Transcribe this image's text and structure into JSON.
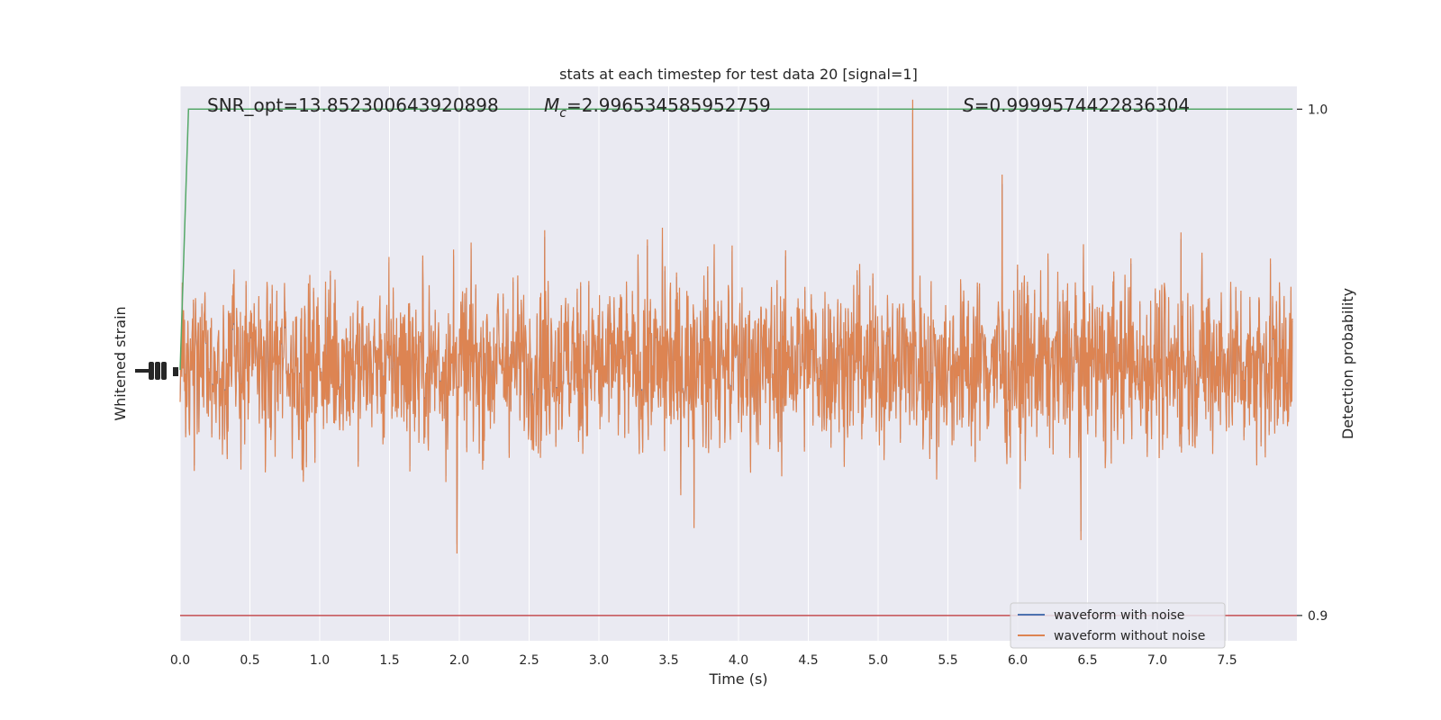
{
  "chart_data": {
    "type": "line",
    "title": "stats at each timestep for test data 20 [signal=1]",
    "xlabel": "Time (s)",
    "ylabel_left": "Whitened strain",
    "ylabel_right": "Detection probability",
    "xlim": [
      0.0,
      8.0
    ],
    "xticks": [
      0.0,
      0.5,
      1.0,
      1.5,
      2.0,
      2.5,
      3.0,
      3.5,
      4.0,
      4.5,
      5.0,
      5.5,
      6.0,
      6.5,
      7.0,
      7.5
    ],
    "xtick_labels": [
      "0.0",
      "0.5",
      "1.0",
      "1.5",
      "2.0",
      "2.5",
      "3.0",
      "3.5",
      "4.0",
      "4.5",
      "5.0",
      "5.5",
      "6.0",
      "6.5",
      "7.0",
      "7.5"
    ],
    "left_ylim": [
      -1.05,
      1.05
    ],
    "right_ylim": [
      0.895,
      1.0045
    ],
    "right_yticks": [
      0.9,
      1.0
    ],
    "right_ytick_labels": [
      "0.9",
      "1.0"
    ],
    "grid": true,
    "legend_placement": "lower-right",
    "colors": {
      "background": "#eaeaf2",
      "grid": "#ffffff",
      "with_noise": "#4c72b0",
      "without_noise": "#dd8452",
      "probability": "#55a868",
      "threshold": "#c44e52"
    },
    "series": [
      {
        "name": "waveform with noise",
        "axis": "left",
        "color": "#4c72b0",
        "note_values": "hidden beneath orange series"
      },
      {
        "name": "waveform without noise",
        "axis": "left",
        "color": "#dd8452"
      }
    ],
    "probability_curve": {
      "axis": "right",
      "x": [
        0.0,
        0.06,
        7.97
      ],
      "y": [
        0.9485,
        1.0,
        1.0
      ]
    },
    "threshold": {
      "axis": "right",
      "y": 0.9
    },
    "annotations": {
      "snr": "SNR_opt=13.852300643920898",
      "mc_symbol": "M",
      "mc_sub": "c",
      "mc_value": "=2.996534585952759",
      "s_symbol": "S",
      "s_value": "=0.9999574422836304"
    }
  }
}
